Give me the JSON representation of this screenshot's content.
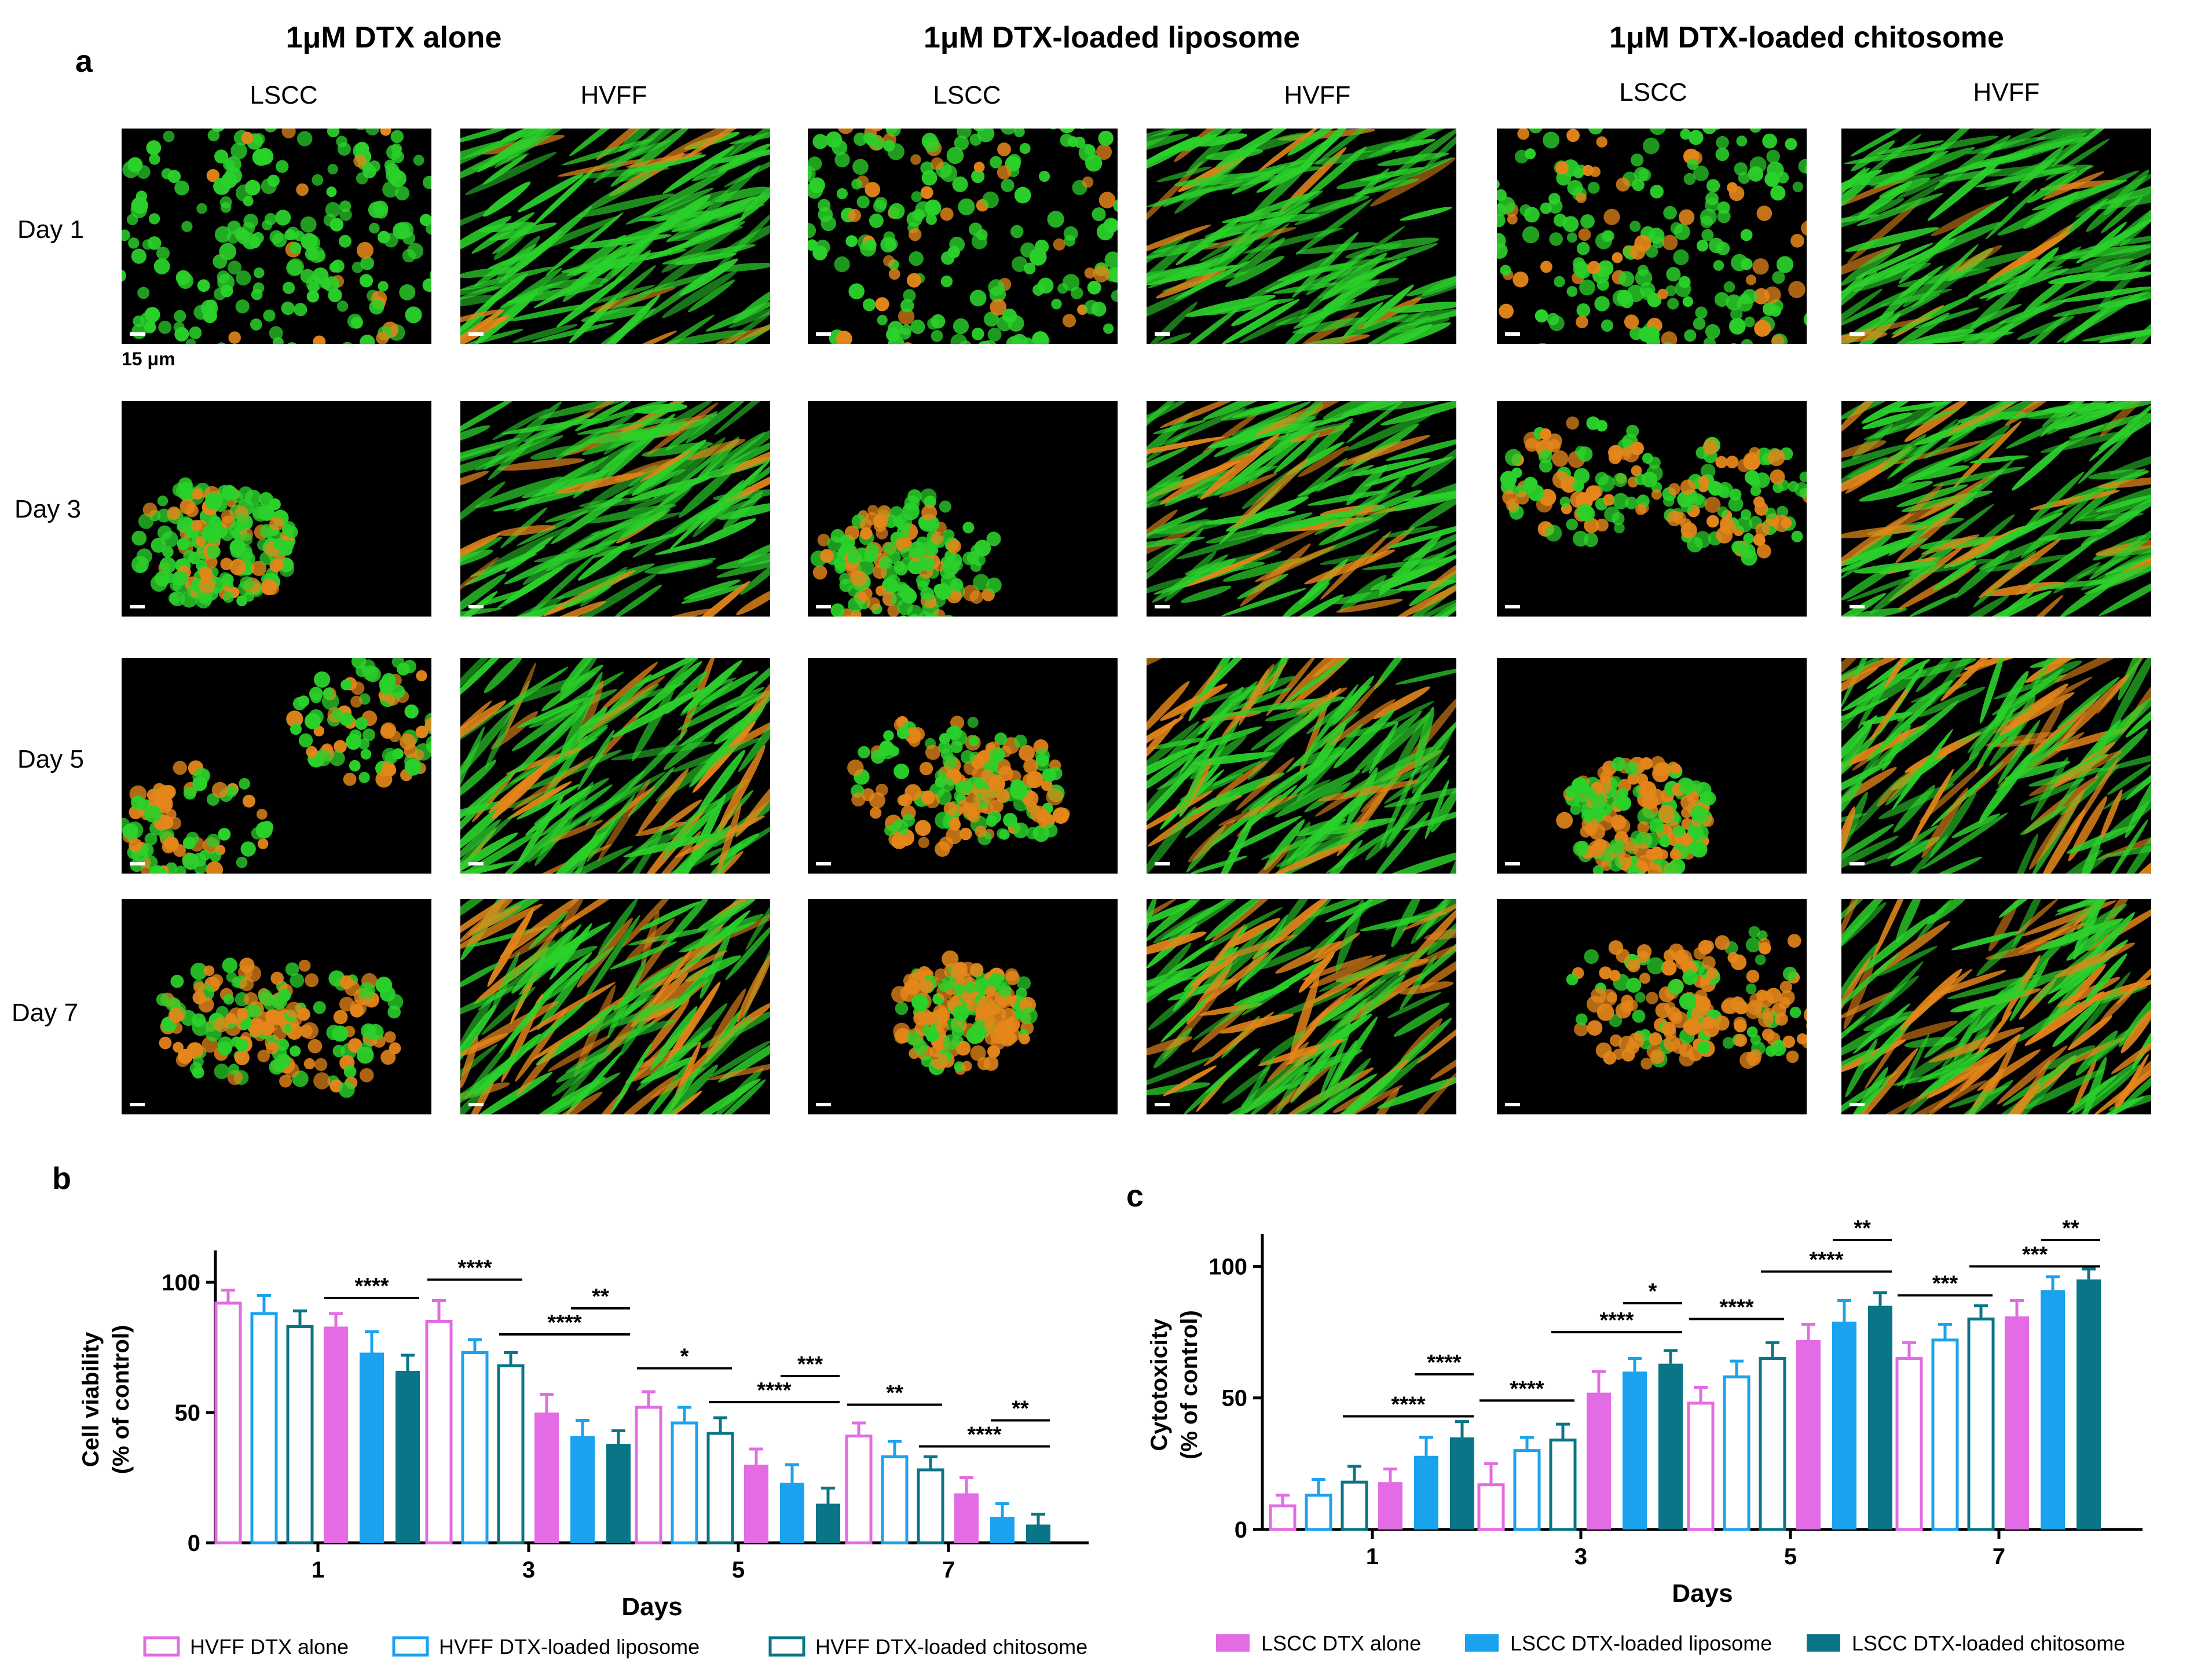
{
  "panels": {
    "a": "a",
    "b": "b",
    "c": "c"
  },
  "conditions": [
    "1μM DTX alone",
    "1μM DTX-loaded liposome",
    "1μM DTX-loaded chitosome"
  ],
  "cell_lines": [
    "LSCC",
    "HVFF"
  ],
  "days": [
    "Day 1",
    "Day 3",
    "Day 5",
    "Day 7"
  ],
  "scale_bar_label": "15 μm",
  "colors": {
    "pink": "#e36be3",
    "blue": "#1aa2ef",
    "teal": "#0a7586",
    "live_green": "#2bd12b",
    "dead_orange": "#e4861a"
  },
  "chart_data": [
    {
      "type": "bar",
      "panel": "b",
      "xlabel": "Days",
      "ylabel_lines": [
        "Cell viability",
        "(% of control)"
      ],
      "categories": [
        "1",
        "3",
        "5",
        "7"
      ],
      "ylim": [
        0,
        110
      ],
      "yticks": [
        "0",
        "50",
        "100"
      ],
      "series": [
        {
          "name": "HVFF DTX alone",
          "style": "open",
          "color": "#e36be3",
          "values": [
            92,
            85,
            52,
            41
          ],
          "errors": [
            5,
            8,
            6,
            5
          ]
        },
        {
          "name": "HVFF DTX-loaded liposome",
          "style": "open",
          "color": "#1aa2ef",
          "values": [
            88,
            73,
            46,
            33
          ],
          "errors": [
            7,
            5,
            6,
            6
          ]
        },
        {
          "name": "HVFF DTX-loaded chitosome",
          "style": "open",
          "color": "#0a7586",
          "values": [
            83,
            68,
            42,
            28
          ],
          "errors": [
            6,
            5,
            6,
            5
          ]
        },
        {
          "name": "LSCC DTX alone",
          "style": "filled",
          "color": "#e36be3",
          "values": [
            83,
            50,
            30,
            19
          ],
          "errors": [
            5,
            7,
            6,
            6
          ]
        },
        {
          "name": "LSCC DTX-loaded liposome",
          "style": "filled",
          "color": "#1aa2ef",
          "values": [
            73,
            41,
            23,
            10
          ],
          "errors": [
            8,
            6,
            7,
            5
          ]
        },
        {
          "name": "LSCC DTX-loaded chitosome",
          "style": "filled",
          "color": "#0a7586",
          "values": [
            66,
            38,
            15,
            7
          ],
          "errors": [
            6,
            5,
            6,
            4
          ]
        }
      ],
      "legend": [
        "HVFF DTX alone",
        "HVFF DTX-loaded liposome",
        "HVFF DTX-loaded chitosome"
      ],
      "significance": [
        {
          "day": "1",
          "from": 3,
          "to": 5,
          "label": "****",
          "y": 94
        },
        {
          "day": "3",
          "from": 0,
          "to": 2,
          "label": "****",
          "y": 101
        },
        {
          "day": "3",
          "from": 4,
          "to": 5,
          "label": "**",
          "y": 90
        },
        {
          "day": "3",
          "from": 2,
          "to": 5,
          "label": "****",
          "y": 80
        },
        {
          "day": "5",
          "from": 0,
          "to": 2,
          "label": "*",
          "y": 67
        },
        {
          "day": "5",
          "from": 4,
          "to": 5,
          "label": "***",
          "y": 64
        },
        {
          "day": "5",
          "from": 2,
          "to": 5,
          "label": "****",
          "y": 54
        },
        {
          "day": "7",
          "from": 0,
          "to": 2,
          "label": "**",
          "y": 53
        },
        {
          "day": "7",
          "from": 4,
          "to": 5,
          "label": "**",
          "y": 47
        },
        {
          "day": "7",
          "from": 2,
          "to": 5,
          "label": "****",
          "y": 37
        }
      ]
    },
    {
      "type": "bar",
      "panel": "c",
      "xlabel": "Days",
      "ylabel_lines": [
        "Cytotoxicity",
        "(% of control)"
      ],
      "categories": [
        "1",
        "3",
        "5",
        "7"
      ],
      "ylim": [
        0,
        110
      ],
      "yticks": [
        "0",
        "50",
        "100"
      ],
      "series": [
        {
          "name": "HVFF DTX alone",
          "style": "open",
          "color": "#e36be3",
          "values": [
            9,
            17,
            48,
            65
          ],
          "errors": [
            4,
            8,
            6,
            6
          ]
        },
        {
          "name": "HVFF DTX-loaded liposome",
          "style": "open",
          "color": "#1aa2ef",
          "values": [
            13,
            30,
            58,
            72
          ],
          "errors": [
            6,
            5,
            6,
            6
          ]
        },
        {
          "name": "HVFF DTX-loaded chitosome",
          "style": "open",
          "color": "#0a7586",
          "values": [
            18,
            34,
            65,
            80
          ],
          "errors": [
            6,
            6,
            6,
            5
          ]
        },
        {
          "name": "LSCC DTX alone",
          "style": "filled",
          "color": "#e36be3",
          "values": [
            18,
            52,
            72,
            81
          ],
          "errors": [
            5,
            8,
            6,
            6
          ]
        },
        {
          "name": "LSCC DTX-loaded liposome",
          "style": "filled",
          "color": "#1aa2ef",
          "values": [
            28,
            60,
            79,
            91
          ],
          "errors": [
            7,
            5,
            8,
            5
          ]
        },
        {
          "name": "LSCC DTX-loaded chitosome",
          "style": "filled",
          "color": "#0a7586",
          "values": [
            35,
            63,
            85,
            95
          ],
          "errors": [
            6,
            5,
            5,
            4
          ]
        }
      ],
      "legend": [
        "LSCC DTX alone",
        "LSCC DTX-loaded liposome",
        "LSCC DTX-loaded chitosome"
      ],
      "significance": [
        {
          "day": "1",
          "from": 4,
          "to": 5,
          "label": "****",
          "y": 59
        },
        {
          "day": "1",
          "from": 2,
          "to": 5,
          "label": "****",
          "y": 43
        },
        {
          "day": "3",
          "from": 0,
          "to": 2,
          "label": "****",
          "y": 49
        },
        {
          "day": "3",
          "from": 4,
          "to": 5,
          "label": "*",
          "y": 86
        },
        {
          "day": "3",
          "from": 2,
          "to": 5,
          "label": "****",
          "y": 75
        },
        {
          "day": "5",
          "from": 0,
          "to": 2,
          "label": "****",
          "y": 80
        },
        {
          "day": "5",
          "from": 4,
          "to": 5,
          "label": "**",
          "y": 110
        },
        {
          "day": "5",
          "from": 2,
          "to": 5,
          "label": "****",
          "y": 98
        },
        {
          "day": "7",
          "from": 0,
          "to": 2,
          "label": "***",
          "y": 89
        },
        {
          "day": "7",
          "from": 4,
          "to": 5,
          "label": "**",
          "y": 110
        },
        {
          "day": "7",
          "from": 2,
          "to": 5,
          "label": "***",
          "y": 100
        }
      ]
    }
  ]
}
